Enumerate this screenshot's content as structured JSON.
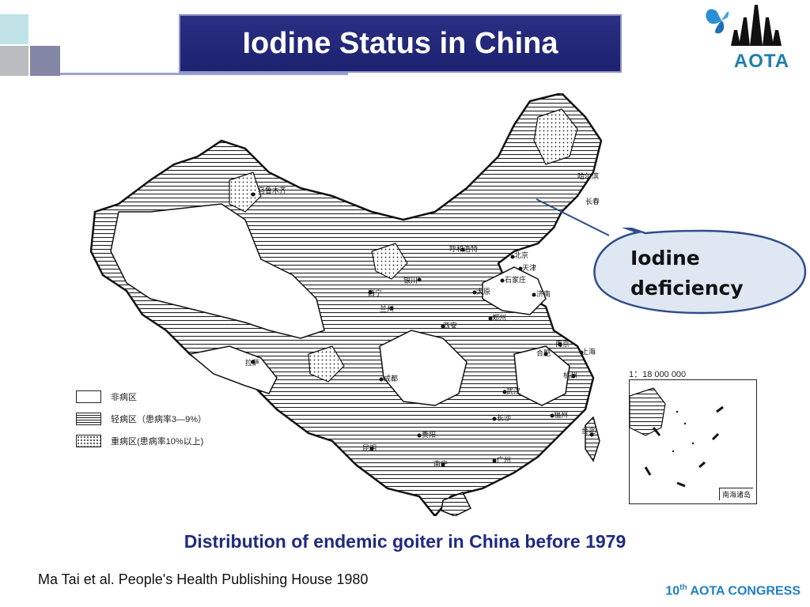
{
  "slide": {
    "title": "Iodine Status in China",
    "caption": "Distribution of endemic goiter in China before 1979",
    "source": "Ma Tai et al.  People's Health Publishing House  1980",
    "footer": {
      "number": "10",
      "suffix": "th",
      "text": "AOTA CONGRESS"
    }
  },
  "logo": {
    "text": "AOTA",
    "icon": "butterfly-icon"
  },
  "callout": {
    "line1": "Iodine",
    "line2": "deficiency"
  },
  "map": {
    "legend": [
      {
        "pattern": "plain",
        "label": "非病区"
      },
      {
        "pattern": "hatched",
        "label": "轻病区（患病率3—9%）"
      },
      {
        "pattern": "dotted",
        "label": "重病区(患病率10%以上)"
      }
    ],
    "scale": "1：18 000 000",
    "inset_label": "南海诸岛",
    "cities": [
      "乌鲁木齐",
      "哈尔滨",
      "长春",
      "呼和浩特",
      "北京",
      "天津",
      "石家庄",
      "银川",
      "西宁",
      "太原",
      "济南",
      "兰州",
      "西安",
      "郑州",
      "南京",
      "上海",
      "合肥",
      "成都",
      "武汉",
      "杭州",
      "拉萨",
      "长沙",
      "贵阳",
      "福州",
      "昆明",
      "台北",
      "南宁",
      "广州"
    ]
  },
  "colors": {
    "title_bg": "#1d2170",
    "caption": "#1f2a80",
    "footer": "#1f7fc4",
    "callout_fill": "#dfe7f3",
    "callout_stroke": "#2f4d8c"
  }
}
